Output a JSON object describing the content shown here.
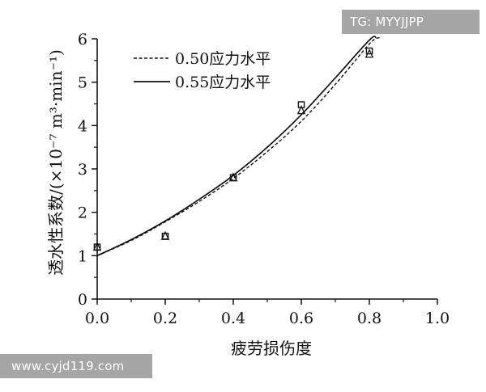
{
  "chart_data": {
    "type": "line",
    "xlabel": "疲劳损伤度",
    "ylabel": "透水性系数/(×10⁻⁷ m³·min⁻¹)",
    "xlim": [
      0,
      1.0
    ],
    "ylim": [
      0,
      6
    ],
    "xticks": [
      "0.0",
      "0.2",
      "0.4",
      "0.6",
      "0.8",
      "1.0"
    ],
    "yticks": [
      "0",
      "1",
      "2",
      "3",
      "4",
      "5",
      "6"
    ],
    "legend_position": "top-left",
    "series": [
      {
        "name": "0.50应力水平",
        "style": "dashed",
        "color": "#111111",
        "curve_x": [
          0.0,
          0.1,
          0.2,
          0.3,
          0.4,
          0.5,
          0.6,
          0.7,
          0.8,
          0.83
        ],
        "curve_y": [
          1.0,
          1.35,
          1.78,
          2.25,
          2.78,
          3.4,
          4.1,
          4.95,
          5.88,
          6.03
        ],
        "points_marker": "triangle",
        "points": [
          [
            0.0,
            1.2
          ],
          [
            0.2,
            1.45
          ],
          [
            0.4,
            2.8
          ],
          [
            0.6,
            4.35
          ],
          [
            0.8,
            5.65
          ]
        ]
      },
      {
        "name": "0.55应力水平",
        "style": "solid",
        "color": "#111111",
        "curve_x": [
          0.0,
          0.1,
          0.2,
          0.3,
          0.4,
          0.5,
          0.6,
          0.7,
          0.8,
          0.82
        ],
        "curve_y": [
          1.0,
          1.37,
          1.8,
          2.3,
          2.85,
          3.5,
          4.25,
          5.1,
          5.97,
          6.03
        ],
        "points_marker": "square",
        "points": [
          [
            0.0,
            1.2
          ],
          [
            0.2,
            1.45
          ],
          [
            0.4,
            2.8
          ],
          [
            0.6,
            4.48
          ],
          [
            0.8,
            5.72
          ]
        ]
      }
    ]
  },
  "watermarks": {
    "top_right": "TG: MYYJJPP",
    "bottom_left": "www.cyjd119.com"
  }
}
